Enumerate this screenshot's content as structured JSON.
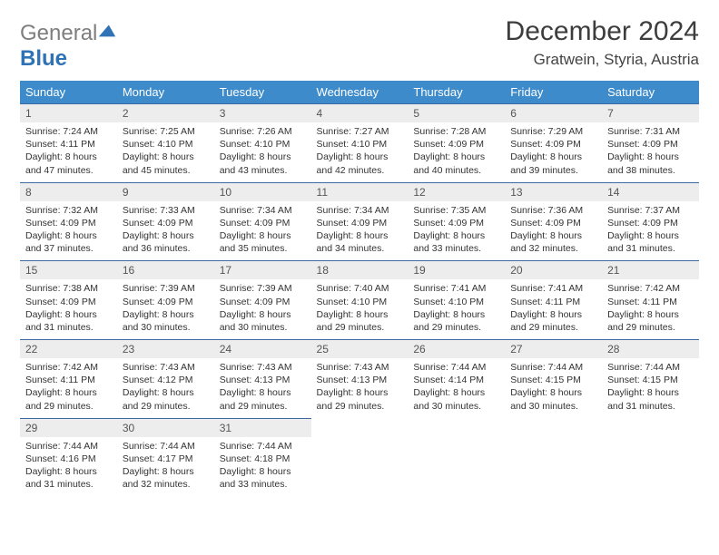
{
  "logo": {
    "line1": "General",
    "line2": "Blue"
  },
  "title": "December 2024",
  "location": "Gratwein, Styria, Austria",
  "colors": {
    "header_bg": "#3d8bca",
    "header_text": "#ffffff",
    "row_border": "#3d6aa0",
    "daynum_bg": "#ededed",
    "body_text": "#333333",
    "page_bg": "#ffffff",
    "logo_gray": "#7e7e7e",
    "logo_blue": "#2f73b6"
  },
  "typography": {
    "title_fontsize": 30,
    "location_fontsize": 17,
    "header_fontsize": 13,
    "daynum_fontsize": 12,
    "body_fontsize": 10.5
  },
  "columns": [
    "Sunday",
    "Monday",
    "Tuesday",
    "Wednesday",
    "Thursday",
    "Friday",
    "Saturday"
  ],
  "weeks": [
    [
      {
        "day": "1",
        "sunrise": "Sunrise: 7:24 AM",
        "sunset": "Sunset: 4:11 PM",
        "d1": "Daylight: 8 hours",
        "d2": "and 47 minutes."
      },
      {
        "day": "2",
        "sunrise": "Sunrise: 7:25 AM",
        "sunset": "Sunset: 4:10 PM",
        "d1": "Daylight: 8 hours",
        "d2": "and 45 minutes."
      },
      {
        "day": "3",
        "sunrise": "Sunrise: 7:26 AM",
        "sunset": "Sunset: 4:10 PM",
        "d1": "Daylight: 8 hours",
        "d2": "and 43 minutes."
      },
      {
        "day": "4",
        "sunrise": "Sunrise: 7:27 AM",
        "sunset": "Sunset: 4:10 PM",
        "d1": "Daylight: 8 hours",
        "d2": "and 42 minutes."
      },
      {
        "day": "5",
        "sunrise": "Sunrise: 7:28 AM",
        "sunset": "Sunset: 4:09 PM",
        "d1": "Daylight: 8 hours",
        "d2": "and 40 minutes."
      },
      {
        "day": "6",
        "sunrise": "Sunrise: 7:29 AM",
        "sunset": "Sunset: 4:09 PM",
        "d1": "Daylight: 8 hours",
        "d2": "and 39 minutes."
      },
      {
        "day": "7",
        "sunrise": "Sunrise: 7:31 AM",
        "sunset": "Sunset: 4:09 PM",
        "d1": "Daylight: 8 hours",
        "d2": "and 38 minutes."
      }
    ],
    [
      {
        "day": "8",
        "sunrise": "Sunrise: 7:32 AM",
        "sunset": "Sunset: 4:09 PM",
        "d1": "Daylight: 8 hours",
        "d2": "and 37 minutes."
      },
      {
        "day": "9",
        "sunrise": "Sunrise: 7:33 AM",
        "sunset": "Sunset: 4:09 PM",
        "d1": "Daylight: 8 hours",
        "d2": "and 36 minutes."
      },
      {
        "day": "10",
        "sunrise": "Sunrise: 7:34 AM",
        "sunset": "Sunset: 4:09 PM",
        "d1": "Daylight: 8 hours",
        "d2": "and 35 minutes."
      },
      {
        "day": "11",
        "sunrise": "Sunrise: 7:34 AM",
        "sunset": "Sunset: 4:09 PM",
        "d1": "Daylight: 8 hours",
        "d2": "and 34 minutes."
      },
      {
        "day": "12",
        "sunrise": "Sunrise: 7:35 AM",
        "sunset": "Sunset: 4:09 PM",
        "d1": "Daylight: 8 hours",
        "d2": "and 33 minutes."
      },
      {
        "day": "13",
        "sunrise": "Sunrise: 7:36 AM",
        "sunset": "Sunset: 4:09 PM",
        "d1": "Daylight: 8 hours",
        "d2": "and 32 minutes."
      },
      {
        "day": "14",
        "sunrise": "Sunrise: 7:37 AM",
        "sunset": "Sunset: 4:09 PM",
        "d1": "Daylight: 8 hours",
        "d2": "and 31 minutes."
      }
    ],
    [
      {
        "day": "15",
        "sunrise": "Sunrise: 7:38 AM",
        "sunset": "Sunset: 4:09 PM",
        "d1": "Daylight: 8 hours",
        "d2": "and 31 minutes."
      },
      {
        "day": "16",
        "sunrise": "Sunrise: 7:39 AM",
        "sunset": "Sunset: 4:09 PM",
        "d1": "Daylight: 8 hours",
        "d2": "and 30 minutes."
      },
      {
        "day": "17",
        "sunrise": "Sunrise: 7:39 AM",
        "sunset": "Sunset: 4:09 PM",
        "d1": "Daylight: 8 hours",
        "d2": "and 30 minutes."
      },
      {
        "day": "18",
        "sunrise": "Sunrise: 7:40 AM",
        "sunset": "Sunset: 4:10 PM",
        "d1": "Daylight: 8 hours",
        "d2": "and 29 minutes."
      },
      {
        "day": "19",
        "sunrise": "Sunrise: 7:41 AM",
        "sunset": "Sunset: 4:10 PM",
        "d1": "Daylight: 8 hours",
        "d2": "and 29 minutes."
      },
      {
        "day": "20",
        "sunrise": "Sunrise: 7:41 AM",
        "sunset": "Sunset: 4:11 PM",
        "d1": "Daylight: 8 hours",
        "d2": "and 29 minutes."
      },
      {
        "day": "21",
        "sunrise": "Sunrise: 7:42 AM",
        "sunset": "Sunset: 4:11 PM",
        "d1": "Daylight: 8 hours",
        "d2": "and 29 minutes."
      }
    ],
    [
      {
        "day": "22",
        "sunrise": "Sunrise: 7:42 AM",
        "sunset": "Sunset: 4:11 PM",
        "d1": "Daylight: 8 hours",
        "d2": "and 29 minutes."
      },
      {
        "day": "23",
        "sunrise": "Sunrise: 7:43 AM",
        "sunset": "Sunset: 4:12 PM",
        "d1": "Daylight: 8 hours",
        "d2": "and 29 minutes."
      },
      {
        "day": "24",
        "sunrise": "Sunrise: 7:43 AM",
        "sunset": "Sunset: 4:13 PM",
        "d1": "Daylight: 8 hours",
        "d2": "and 29 minutes."
      },
      {
        "day": "25",
        "sunrise": "Sunrise: 7:43 AM",
        "sunset": "Sunset: 4:13 PM",
        "d1": "Daylight: 8 hours",
        "d2": "and 29 minutes."
      },
      {
        "day": "26",
        "sunrise": "Sunrise: 7:44 AM",
        "sunset": "Sunset: 4:14 PM",
        "d1": "Daylight: 8 hours",
        "d2": "and 30 minutes."
      },
      {
        "day": "27",
        "sunrise": "Sunrise: 7:44 AM",
        "sunset": "Sunset: 4:15 PM",
        "d1": "Daylight: 8 hours",
        "d2": "and 30 minutes."
      },
      {
        "day": "28",
        "sunrise": "Sunrise: 7:44 AM",
        "sunset": "Sunset: 4:15 PM",
        "d1": "Daylight: 8 hours",
        "d2": "and 31 minutes."
      }
    ],
    [
      {
        "day": "29",
        "sunrise": "Sunrise: 7:44 AM",
        "sunset": "Sunset: 4:16 PM",
        "d1": "Daylight: 8 hours",
        "d2": "and 31 minutes."
      },
      {
        "day": "30",
        "sunrise": "Sunrise: 7:44 AM",
        "sunset": "Sunset: 4:17 PM",
        "d1": "Daylight: 8 hours",
        "d2": "and 32 minutes."
      },
      {
        "day": "31",
        "sunrise": "Sunrise: 7:44 AM",
        "sunset": "Sunset: 4:18 PM",
        "d1": "Daylight: 8 hours",
        "d2": "and 33 minutes."
      },
      null,
      null,
      null,
      null
    ]
  ]
}
